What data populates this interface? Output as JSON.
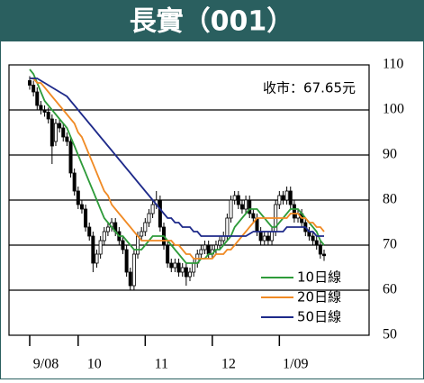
{
  "chart_data": {
    "type": "candlestick",
    "title": "長實（001）",
    "annotation": "收市：67.65元",
    "categories": [
      "9/08",
      null,
      null,
      null,
      null,
      null,
      null,
      null,
      null,
      null,
      null,
      null,
      null,
      "10",
      null,
      null,
      null,
      null,
      null,
      null,
      null,
      null,
      null,
      null,
      null,
      null,
      null,
      null,
      null,
      null,
      null,
      "11",
      null,
      null,
      null,
      null,
      null,
      null,
      null,
      null,
      null,
      null,
      null,
      null,
      null,
      null,
      null,
      null,
      null,
      "12",
      null,
      null,
      null,
      null,
      null,
      null,
      null,
      null,
      null,
      null,
      null,
      null,
      null,
      null,
      null,
      null,
      null,
      "1/09",
      null,
      null,
      null,
      null,
      null,
      null,
      null,
      null,
      null,
      null,
      null,
      null
    ],
    "open": [
      106.5,
      105.5,
      104,
      101,
      100,
      99.5,
      98,
      93,
      97,
      96,
      94,
      93,
      86,
      82,
      79,
      78,
      74,
      72,
      66,
      68,
      71,
      73,
      74,
      75,
      73,
      71,
      69,
      64,
      61,
      68,
      72,
      73,
      75,
      77,
      79,
      80,
      74,
      70,
      66,
      65,
      66,
      64,
      65,
      63,
      64,
      66,
      68,
      69,
      70,
      68,
      69,
      70,
      71,
      72,
      76,
      80,
      81,
      79,
      78,
      80,
      77,
      76,
      73,
      71,
      72,
      71,
      73,
      79,
      81,
      80,
      82,
      79,
      76,
      77,
      75,
      73,
      72,
      71,
      70,
      68
    ],
    "high": [
      107.5,
      106.5,
      105,
      102,
      101,
      100.5,
      99,
      98,
      98,
      97,
      95,
      94,
      87,
      83,
      80,
      79,
      75,
      73,
      69,
      72,
      74,
      75,
      76,
      76,
      74,
      72,
      70,
      65,
      69,
      73,
      74,
      76,
      78,
      80,
      82,
      81,
      75,
      71,
      67,
      67,
      67,
      66,
      66,
      65,
      67,
      69,
      70,
      71,
      71,
      70,
      71,
      72,
      73,
      77,
      81,
      82,
      82,
      80,
      81,
      81,
      78,
      77,
      74,
      73,
      73,
      74,
      80,
      82,
      82,
      83,
      83,
      80,
      78,
      78,
      76,
      74,
      73,
      72,
      71,
      69
    ],
    "low": [
      104.5,
      103,
      100,
      99,
      98.5,
      97,
      88,
      92,
      95,
      93,
      92,
      85,
      81,
      78,
      77,
      73,
      71,
      64,
      65,
      67,
      70,
      72,
      73,
      72,
      70,
      68,
      63,
      60,
      60,
      67,
      71,
      72,
      74,
      76,
      78,
      73,
      69,
      65,
      64,
      64,
      63,
      63,
      61,
      62,
      63,
      65,
      67,
      68,
      67,
      67,
      68,
      69,
      70,
      71,
      75,
      79,
      78,
      77,
      77,
      76,
      75,
      72,
      70,
      70,
      70,
      70,
      72,
      78,
      79,
      79,
      78,
      75,
      75,
      74,
      72,
      71,
      70,
      69,
      67,
      66.5
    ],
    "close": [
      105.5,
      104,
      101,
      100,
      99.5,
      98,
      92,
      97,
      96,
      94,
      93,
      86,
      82,
      79,
      78,
      74,
      72,
      66,
      68,
      71,
      73,
      74,
      75,
      73,
      71,
      69,
      64,
      61,
      68,
      72,
      73,
      75,
      77,
      79,
      80,
      74,
      70,
      66,
      65,
      66,
      64,
      65,
      63,
      64,
      66,
      68,
      69,
      70,
      68,
      69,
      70,
      71,
      72,
      76,
      80,
      81,
      79,
      78,
      80,
      77,
      76,
      73,
      71,
      72,
      71,
      73,
      79,
      81,
      80,
      82,
      79,
      76,
      77,
      75,
      73,
      72,
      71,
      70,
      68,
      67.65
    ],
    "up_color": "#ffffff",
    "down_color": "#000000",
    "series": [
      {
        "name": "10日線",
        "color": "#2e9b3a",
        "values": [
          109,
          108,
          106,
          104,
          102,
          101,
          100,
          99,
          98,
          97,
          96,
          94,
          92,
          90,
          88,
          86,
          84,
          82,
          80,
          78,
          76,
          75,
          74,
          73,
          72,
          72,
          71,
          70,
          69,
          69,
          69,
          70,
          71,
          72,
          72,
          72,
          72,
          71,
          70,
          69,
          68,
          67,
          66,
          66,
          66,
          66,
          67,
          67,
          68,
          68,
          69,
          69,
          70,
          71,
          72,
          74,
          75,
          76,
          77,
          78,
          78,
          78,
          77,
          76,
          75,
          74,
          74,
          75,
          76,
          77,
          78,
          78,
          78,
          77,
          76,
          75,
          74,
          73,
          71,
          70
        ]
      },
      {
        "name": "20日線",
        "color": "#f08a24",
        "values": [
          107,
          107,
          106,
          106,
          105,
          104,
          103,
          102,
          101,
          100,
          99,
          98,
          97,
          95,
          94,
          92,
          90,
          88,
          86,
          84,
          82,
          81,
          79,
          78,
          77,
          76,
          75,
          74,
          73,
          72,
          71,
          71,
          71,
          71,
          71,
          71,
          71,
          71,
          71,
          70,
          70,
          69,
          68,
          68,
          67,
          67,
          67,
          67,
          67,
          67,
          68,
          68,
          68,
          69,
          69,
          70,
          71,
          72,
          73,
          74,
          75,
          76,
          76,
          76,
          76,
          76,
          76,
          76,
          76,
          76,
          77,
          77,
          77,
          76,
          76,
          75,
          75,
          74,
          74,
          73
        ]
      },
      {
        "name": "50日線",
        "color": "#1e2a8a",
        "values": [
          107,
          107,
          107,
          106.5,
          106,
          105.5,
          105,
          104.5,
          104,
          103.5,
          103,
          102,
          101,
          100,
          99,
          98,
          97,
          96,
          95,
          94,
          93,
          92,
          91,
          90,
          89,
          88,
          87,
          86,
          85,
          84,
          83,
          82,
          81,
          80,
          79,
          78,
          77,
          76,
          76,
          75,
          75,
          74,
          74,
          74,
          73,
          73,
          72,
          72,
          72,
          72,
          72,
          72,
          72,
          72,
          72,
          72,
          72,
          72,
          72,
          72.5,
          73,
          73,
          73,
          73,
          73,
          73,
          73,
          73,
          73,
          74,
          74,
          74,
          74,
          74,
          74,
          73,
          73,
          72,
          72,
          72
        ]
      }
    ],
    "ylim": [
      50,
      110
    ],
    "yticks": [
      50,
      60,
      70,
      80,
      90,
      100,
      110
    ],
    "grid": true
  }
}
